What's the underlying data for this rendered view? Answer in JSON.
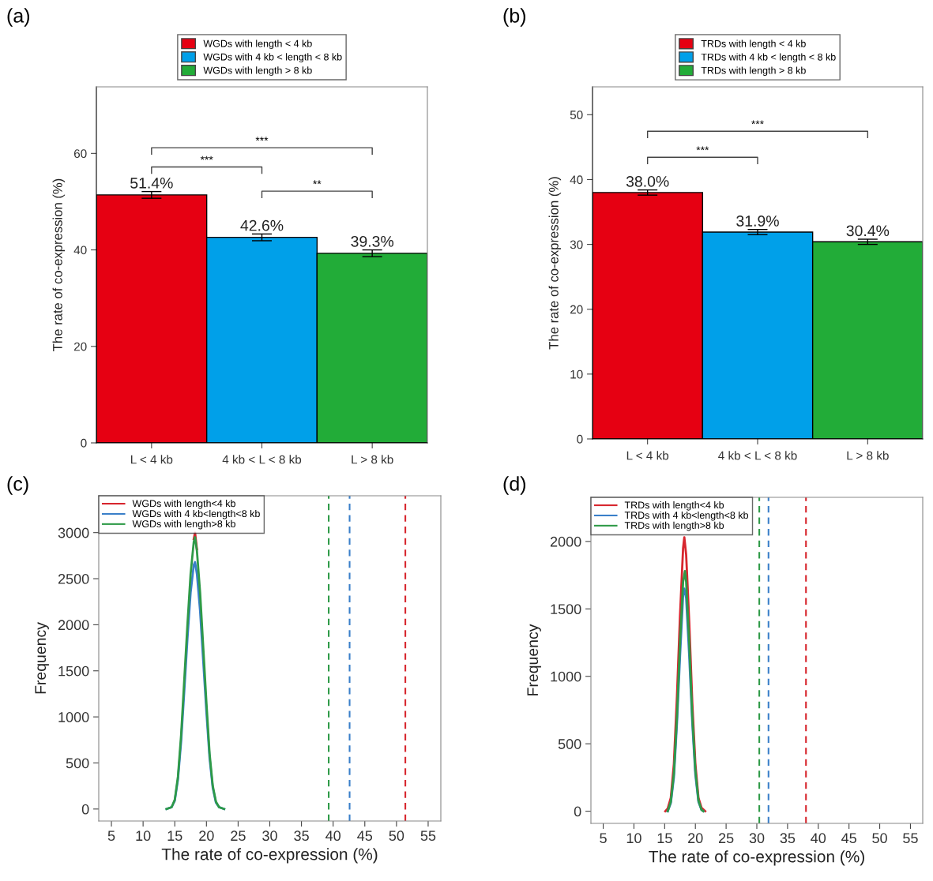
{
  "chart_data": [
    {
      "type": "bar",
      "title": "(a)",
      "ylabel": "The rate of co-expression (%)",
      "categories": [
        "L < 4 kb",
        "4 kb < L < 8 kb",
        "L > 8 kb"
      ],
      "ylim": [
        0,
        73.8
      ],
      "yticks": [
        0,
        20,
        40,
        60
      ],
      "legend": "top",
      "grid": false,
      "series": [
        {
          "name": "WGDs with length < 4 kb",
          "color": "#e60012",
          "values": [
            51.4,
            null,
            null
          ],
          "errors": [
            0.7,
            null,
            null
          ],
          "value_labels": [
            "51.4%",
            null,
            null
          ]
        },
        {
          "name": "WGDs with 4 kb < length < 8 kb",
          "color": "#00a0e9",
          "values": [
            null,
            42.6,
            null
          ],
          "errors": [
            null,
            0.7,
            null
          ],
          "value_labels": [
            null,
            "42.6%",
            null
          ]
        },
        {
          "name": "WGDs with length > 8 kb",
          "color": "#22ac38",
          "values": [
            null,
            null,
            39.3
          ],
          "errors": [
            null,
            null,
            0.7
          ],
          "value_labels": [
            null,
            null,
            "39.3%"
          ]
        }
      ],
      "annotations": [
        "***",
        "***",
        "**"
      ]
    },
    {
      "type": "bar",
      "title": "(b)",
      "ylabel": "The rate of co-expression (%)",
      "categories": [
        "L < 4 kb",
        "4 kb < L < 8 kb",
        "L > 8 kb"
      ],
      "ylim": [
        0,
        54.3
      ],
      "yticks": [
        0,
        10,
        20,
        30,
        40,
        50
      ],
      "legend": "top",
      "grid": false,
      "series": [
        {
          "name": "TRDs with length < 4 kb",
          "color": "#e60012",
          "values": [
            38.0,
            null,
            null
          ],
          "errors": [
            0.4,
            null,
            null
          ],
          "value_labels": [
            "38.0%",
            null,
            null
          ]
        },
        {
          "name": "TRDs with 4 kb < length < 8 kb",
          "color": "#00a0e9",
          "values": [
            null,
            31.9,
            null
          ],
          "errors": [
            null,
            0.4,
            null
          ],
          "value_labels": [
            null,
            "31.9%",
            null
          ]
        },
        {
          "name": "TRDs with length > 8 kb",
          "color": "#22ac38",
          "values": [
            null,
            null,
            30.4
          ],
          "errors": [
            null,
            null,
            0.4
          ],
          "value_labels": [
            null,
            null,
            "30.4%"
          ]
        }
      ],
      "annotations": [
        "***",
        "***"
      ]
    },
    {
      "type": "line",
      "title": "(c)",
      "xlabel": "The rate of co-expression (%)",
      "ylabel": "Frequency",
      "xlim": [
        3,
        57
      ],
      "xticks": [
        5,
        10,
        15,
        20,
        25,
        30,
        35,
        40,
        45,
        50,
        55
      ],
      "ylim": [
        -130,
        3400
      ],
      "yticks": [
        0,
        500,
        1000,
        1500,
        2000,
        2500,
        3000
      ],
      "legend": "top left",
      "grid": false,
      "line_style": "solid",
      "series": [
        {
          "name": "WGDs with length<4 kb",
          "color": "#d7262e",
          "x": [
            18,
            18.2,
            18.5
          ],
          "values": [
            2930,
            3000,
            2820
          ]
        },
        {
          "name": "WGDs with 4 kb<length<8 kb",
          "color": "#3a7fc9",
          "x": [
            13.7,
            14.5,
            15,
            15.5,
            16,
            16.5,
            17,
            17.5,
            18,
            18.2,
            18.5,
            19,
            19.5,
            20,
            20.5,
            21,
            21.5,
            22,
            22.8
          ],
          "values": [
            0,
            20,
            90,
            320,
            730,
            1280,
            1850,
            2350,
            2650,
            2680,
            2550,
            2150,
            1600,
            1050,
            550,
            230,
            70,
            20,
            0
          ]
        },
        {
          "name": "WGDs with length>8 kb",
          "color": "#2e9a47",
          "x": [
            13.7,
            14.5,
            15,
            15.5,
            16,
            16.5,
            17,
            17.5,
            18,
            18.2,
            18.5,
            19,
            19.5,
            20,
            20.5,
            21,
            21.5,
            22,
            22.8
          ],
          "values": [
            0,
            20,
            100,
            350,
            800,
            1400,
            2000,
            2550,
            2900,
            2950,
            2800,
            2350,
            1750,
            1150,
            600,
            250,
            80,
            20,
            0
          ]
        }
      ],
      "ref_lines": [
        {
          "axis": "x",
          "value": 39.3,
          "color": "#2e9a47",
          "line_style": "dashed"
        },
        {
          "axis": "x",
          "value": 42.6,
          "color": "#3a7fc9",
          "line_style": "dashed"
        },
        {
          "axis": "x",
          "value": 51.4,
          "color": "#d7262e",
          "line_style": "dashed"
        }
      ]
    },
    {
      "type": "line",
      "title": "(d)",
      "xlabel": "The rate of co-expression (%)",
      "ylabel": "Frequency",
      "xlim": [
        3,
        57
      ],
      "xticks": [
        5,
        10,
        15,
        20,
        25,
        30,
        35,
        40,
        45,
        50,
        55
      ],
      "ylim": [
        -90,
        2327
      ],
      "yticks": [
        0,
        500,
        1000,
        1500,
        2000
      ],
      "legend": "top left",
      "grid": false,
      "line_style": "solid",
      "series": [
        {
          "name": "TRDs with length<4 kb",
          "color": "#d7262e",
          "x": [
            15.1,
            15.5,
            16,
            16.5,
            17,
            17.5,
            18,
            18.2,
            18.5,
            19,
            19.5,
            20,
            20.5,
            21,
            21.6
          ],
          "values": [
            0,
            20,
            100,
            350,
            850,
            1450,
            1950,
            2030,
            1900,
            1400,
            800,
            350,
            100,
            25,
            0
          ]
        },
        {
          "name": "TRDs with 4 kb<length<8 kb",
          "color": "#3a7fc9",
          "x": [
            15.5,
            16,
            16.5,
            17,
            17.5,
            18,
            18.2,
            18.5,
            19,
            19.5,
            20,
            20.5,
            21,
            21.3
          ],
          "values": [
            0,
            60,
            250,
            650,
            1150,
            1600,
            1650,
            1580,
            1150,
            650,
            270,
            70,
            10,
            0
          ]
        },
        {
          "name": "TRDs with length>8 kb",
          "color": "#2e9a47",
          "x": [
            15.5,
            16,
            16.5,
            17,
            17.5,
            18,
            18.3,
            18.5,
            19,
            19.5,
            20,
            20.5,
            21,
            21.3
          ],
          "values": [
            0,
            70,
            280,
            700,
            1250,
            1700,
            1780,
            1700,
            1250,
            700,
            300,
            80,
            10,
            0
          ]
        }
      ],
      "ref_lines": [
        {
          "axis": "x",
          "value": 30.4,
          "color": "#2e9a47",
          "line_style": "dashed"
        },
        {
          "axis": "x",
          "value": 31.9,
          "color": "#3a7fc9",
          "line_style": "dashed"
        },
        {
          "axis": "x",
          "value": 38.0,
          "color": "#d7262e",
          "line_style": "dashed"
        }
      ]
    }
  ]
}
